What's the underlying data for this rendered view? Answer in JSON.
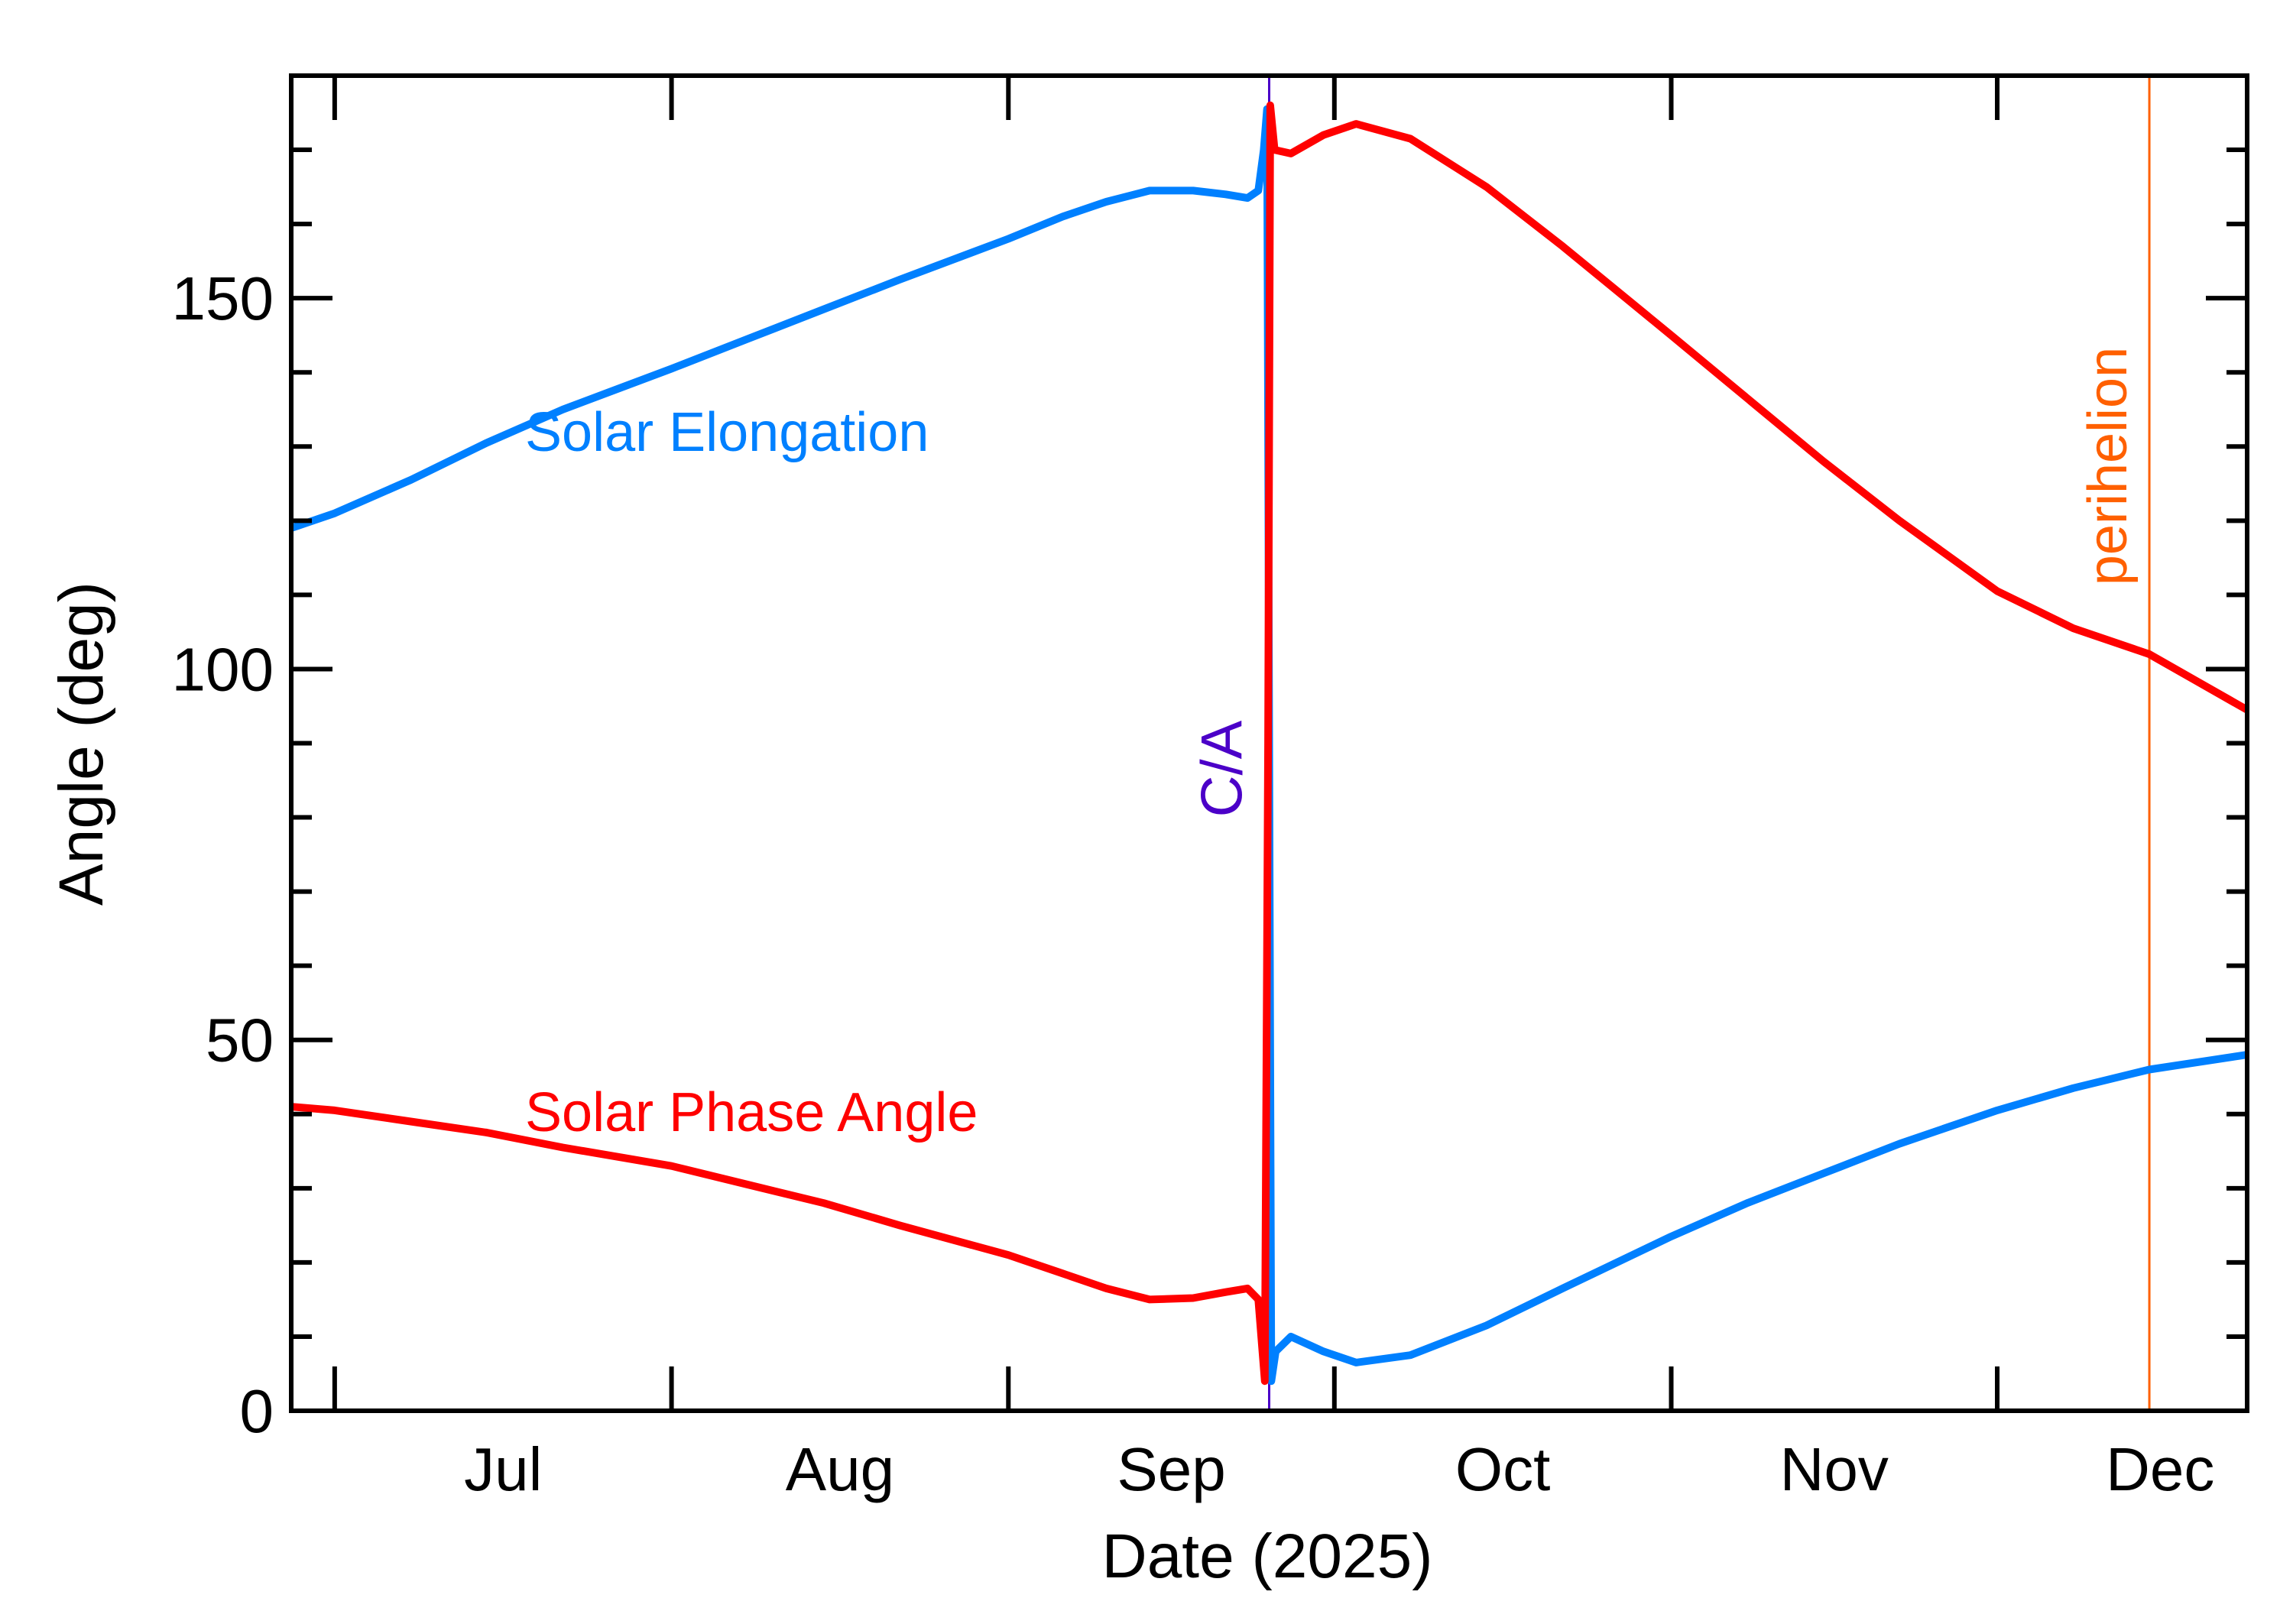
{
  "chart_data": {
    "type": "line",
    "xlabel": "Date (2025)",
    "ylabel": "Angle (deg)",
    "xlim": [
      "2025-06-27",
      "2025-12-24"
    ],
    "ylim": [
      0,
      180
    ],
    "x_ticks": [
      {
        "date": "2025-07-01",
        "label": "Jul"
      },
      {
        "date": "2025-08-01",
        "label": "Aug"
      },
      {
        "date": "2025-09-01",
        "label": "Sep"
      },
      {
        "date": "2025-10-01",
        "label": "Oct"
      },
      {
        "date": "2025-11-01",
        "label": "Nov"
      },
      {
        "date": "2025-12-01",
        "label": "Dec"
      }
    ],
    "y_ticks": [
      0,
      50,
      100,
      150
    ],
    "y_minor_step": 10,
    "grid": false,
    "series": [
      {
        "name": "Solar Elongation",
        "color": "#0080ff",
        "points": [
          [
            "2025-06-27",
            119
          ],
          [
            "2025-07-01",
            121
          ],
          [
            "2025-07-08",
            125.5
          ],
          [
            "2025-07-15",
            130.5
          ],
          [
            "2025-07-22",
            135
          ],
          [
            "2025-08-01",
            140.5
          ],
          [
            "2025-08-08",
            144.5
          ],
          [
            "2025-08-15",
            148.5
          ],
          [
            "2025-08-22",
            152.5
          ],
          [
            "2025-09-01",
            158
          ],
          [
            "2025-09-06",
            161
          ],
          [
            "2025-09-10",
            163
          ],
          [
            "2025-09-14",
            164.5
          ],
          [
            "2025-09-18",
            164.5
          ],
          [
            "2025-09-21",
            164
          ],
          [
            "2025-09-23",
            163.5
          ],
          [
            "2025-09-24",
            164.5
          ],
          [
            "2025-09-24.5",
            170
          ],
          [
            "2025-09-24.8",
            175.5
          ],
          [
            "2025-09-25.0",
            90
          ],
          [
            "2025-09-25.2",
            4
          ],
          [
            "2025-09-25.6",
            8
          ],
          [
            "2025-09-27",
            10
          ],
          [
            "2025-09-30",
            8
          ],
          [
            "2025-10-03",
            6.5
          ],
          [
            "2025-10-08",
            7.5
          ],
          [
            "2025-10-15",
            11.5
          ],
          [
            "2025-10-22",
            16.5
          ],
          [
            "2025-11-01",
            23.5
          ],
          [
            "2025-11-08",
            28
          ],
          [
            "2025-11-15",
            32
          ],
          [
            "2025-11-22",
            36
          ],
          [
            "2025-12-01",
            40.5
          ],
          [
            "2025-12-08",
            43.5
          ],
          [
            "2025-12-15",
            46
          ],
          [
            "2025-12-24",
            48
          ]
        ]
      },
      {
        "name": "Solar Phase Angle",
        "color": "#ff0000",
        "points": [
          [
            "2025-06-27",
            41
          ],
          [
            "2025-07-01",
            40.5
          ],
          [
            "2025-07-08",
            39
          ],
          [
            "2025-07-15",
            37.5
          ],
          [
            "2025-07-22",
            35.5
          ],
          [
            "2025-08-01",
            33
          ],
          [
            "2025-08-08",
            30.5
          ],
          [
            "2025-08-15",
            28
          ],
          [
            "2025-08-22",
            25
          ],
          [
            "2025-09-01",
            21
          ],
          [
            "2025-09-06",
            18.5
          ],
          [
            "2025-09-10",
            16.5
          ],
          [
            "2025-09-14",
            15
          ],
          [
            "2025-09-18",
            15.2
          ],
          [
            "2025-09-21",
            16
          ],
          [
            "2025-09-23",
            16.5
          ],
          [
            "2025-09-24",
            15
          ],
          [
            "2025-09-24.6",
            4
          ],
          [
            "2025-09-24.9",
            90
          ],
          [
            "2025-09-25.1",
            176
          ],
          [
            "2025-09-25.5",
            170
          ],
          [
            "2025-09-27",
            169.5
          ],
          [
            "2025-09-30",
            172
          ],
          [
            "2025-10-03",
            173.5
          ],
          [
            "2025-10-08",
            171.5
          ],
          [
            "2025-10-15",
            165
          ],
          [
            "2025-10-22",
            157
          ],
          [
            "2025-11-01",
            145
          ],
          [
            "2025-11-08",
            136.5
          ],
          [
            "2025-11-15",
            128
          ],
          [
            "2025-11-22",
            120
          ],
          [
            "2025-12-01",
            110.5
          ],
          [
            "2025-12-08",
            105.5
          ],
          [
            "2025-12-15",
            102
          ],
          [
            "2025-12-24",
            94.5
          ]
        ]
      }
    ],
    "annotations": [
      {
        "label": "C/A",
        "date": "2025-09-25",
        "color": "#4b00c8"
      },
      {
        "label": "perihelion",
        "date": "2025-12-15",
        "color": "#ff6000"
      }
    ],
    "series_labels": {
      "elongation": "Solar Elongation",
      "phase": "Solar Phase Angle"
    }
  }
}
